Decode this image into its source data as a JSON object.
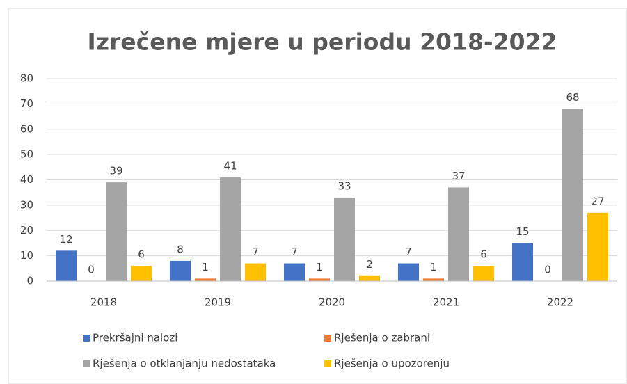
{
  "chart_data": {
    "type": "bar",
    "title": "Izrečene mjere u periodu 2018-2022",
    "categories": [
      "2018",
      "2019",
      "2020",
      "2021",
      "2022"
    ],
    "series": [
      {
        "name": "Prekršajni nalozi",
        "color": "#4472c4",
        "values": [
          12,
          8,
          7,
          7,
          15
        ]
      },
      {
        "name": "Rješenja o zabrani",
        "color": "#ed7d31",
        "values": [
          0,
          1,
          1,
          1,
          0
        ]
      },
      {
        "name": "Rješenja o otklanjanju nedostataka",
        "color": "#a5a5a5",
        "values": [
          39,
          41,
          33,
          37,
          68
        ]
      },
      {
        "name": "Rješenja o upozorenju",
        "color": "#ffc000",
        "values": [
          6,
          7,
          2,
          6,
          27
        ]
      }
    ],
    "ylim": [
      0,
      80
    ],
    "yticks": [
      0,
      10,
      20,
      30,
      40,
      50,
      60,
      70,
      80
    ],
    "grid": true,
    "legend": "bottom"
  }
}
